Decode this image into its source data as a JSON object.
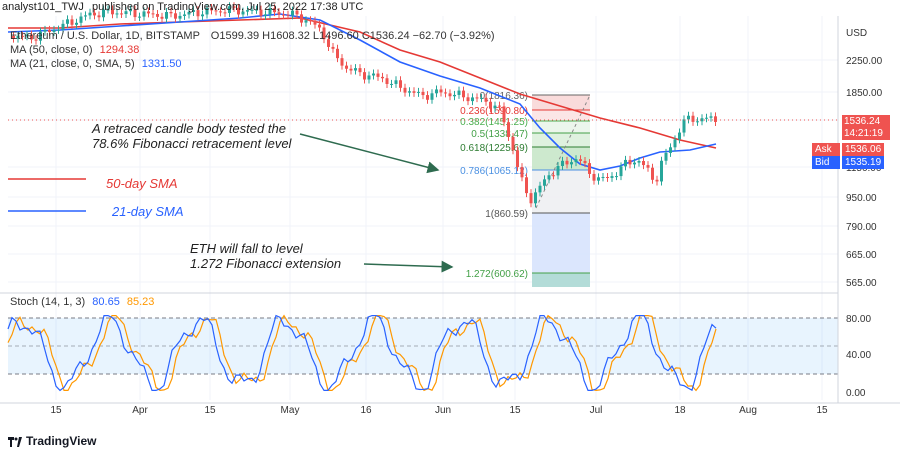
{
  "header": {
    "author": "analyst101_TWJ",
    "published": "published on TradingView.com, Jul 25, 2022 17:38 UTC",
    "symbol": "Ethereum / U.S. Dollar, 1D, BITSTAMP",
    "ohlc": "O1599.39  H1608.32  L1496.60  C1536.24  −62.70 (−3.92%)"
  },
  "indicators": [
    {
      "label": "MA (50, close, 0)",
      "value": "1294.38",
      "color": "#e53935"
    },
    {
      "label": "MA (21, close, 0, SMA, 5)",
      "value": "1331.50",
      "color": "#2962ff"
    }
  ],
  "stoch": {
    "label": "Stoch (14, 1, 3)",
    "k_value": "80.65",
    "d_value": "85.23",
    "k_color": "#2962ff",
    "d_color": "#ff9800"
  },
  "annotations": {
    "retrace": [
      "A retraced candle body tested the",
      "78.6% Fibonacci retracement level"
    ],
    "extension": [
      "ETH will fall to level",
      "1.272 Fibonacci extension"
    ],
    "legend_50": "50-day SMA",
    "legend_21": "21-day SMA"
  },
  "price_panel": {
    "currency": "USD",
    "last_price": "1536.24",
    "countdown": "14:21:19",
    "ask_label": "Ask",
    "ask": "1536.06",
    "bid_label": "Bid",
    "bid": "1535.19"
  },
  "footer": {
    "logo": "TradingView"
  },
  "chart_data": {
    "type": "candlestick",
    "y_axis_ticks": [
      "2250.00",
      "1850.00",
      "1536.24",
      "1150.00",
      "950.00",
      "790.00",
      "665.00",
      "565.00"
    ],
    "stoch_axis_ticks": [
      "80.00",
      "40.00",
      "0.00"
    ],
    "x_axis_ticks": [
      "15",
      "Apr",
      "15",
      "May",
      "16",
      "Jun",
      "15",
      "Jul",
      "18",
      "Aug",
      "15"
    ],
    "fib_levels": [
      {
        "label": "0(1816.36)"
      },
      {
        "label": "0.236(1590.80)"
      },
      {
        "label": "0.382(1451.25)"
      },
      {
        "label": "0.5(1338.47)"
      },
      {
        "label": "0.618(1225.69)"
      },
      {
        "label": "0.786(1065.12)"
      },
      {
        "label": "1(860.59)"
      },
      {
        "label": "1.272(600.62)"
      }
    ],
    "colors": {
      "up": "#26a69a",
      "down": "#ef5350",
      "ma50": "#e53935",
      "ma21": "#2962ff",
      "stoch_k": "#2962ff",
      "stoch_d": "#ff9800",
      "annot_arrow": "#2e6b4f"
    }
  }
}
